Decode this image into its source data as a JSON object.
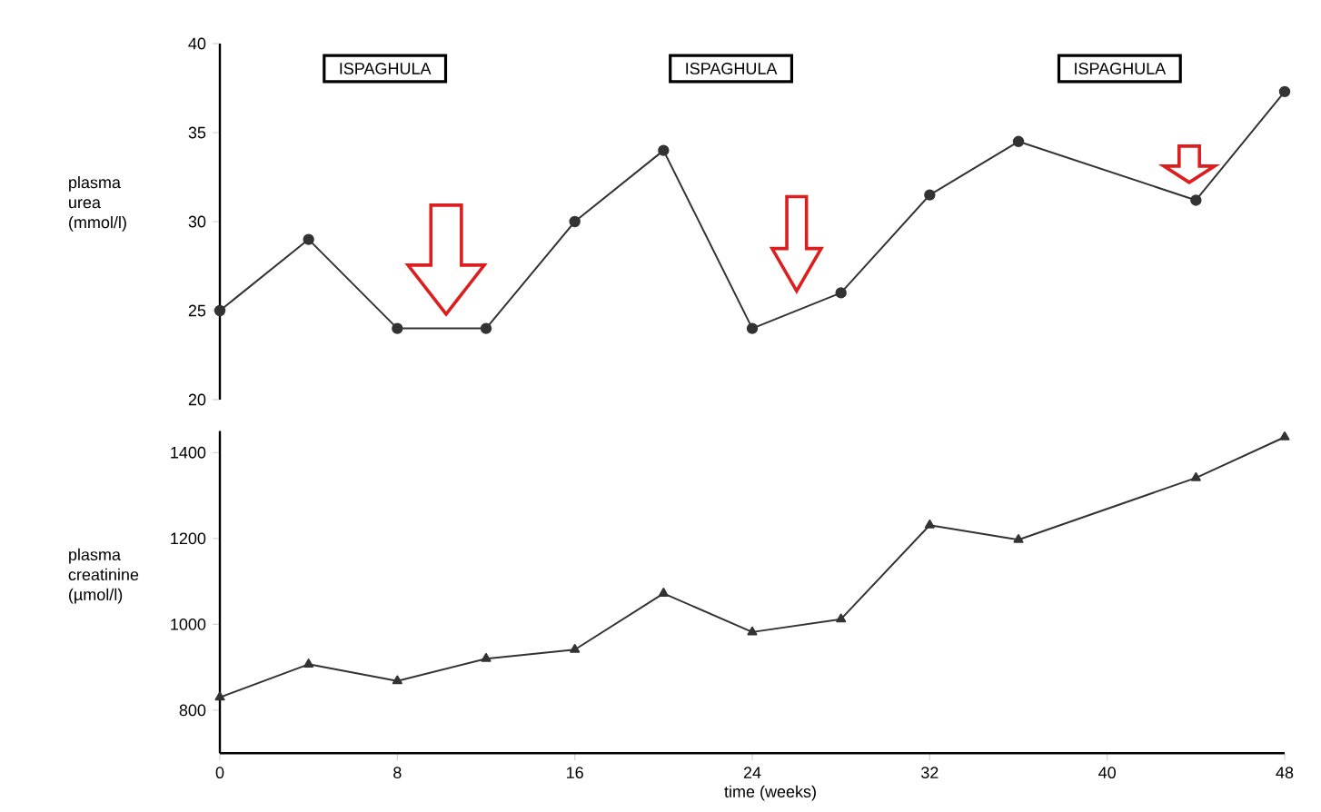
{
  "chart_data": [
    {
      "type": "line",
      "ylabel": "plasma urea (mmol/l)",
      "x": [
        0,
        4,
        8,
        12,
        16,
        20,
        24,
        28,
        32,
        36,
        44,
        48
      ],
      "series": [
        {
          "color": "#333333",
          "values": [
            25,
            29,
            24,
            24,
            30,
            34,
            24,
            26,
            31.5,
            34.5,
            31.2,
            37.3
          ]
        }
      ],
      "xlim": [
        0,
        48
      ],
      "ylim": [
        20,
        40
      ],
      "xticks": [
        0,
        8,
        16,
        24,
        32,
        40,
        48
      ],
      "yticks": [
        20,
        25,
        30,
        35,
        40
      ],
      "marker": "circle",
      "tick_labels": "y",
      "annotations": [
        "ISPAGHULA",
        "ISPAGHULA",
        "ISPAGHULA"
      ]
    },
    {
      "type": "line",
      "ylabel": "plasma creatinine (µmol/l)",
      "xlabel": "time (weeks)",
      "x": [
        0,
        4,
        8,
        12,
        16,
        20,
        24,
        28,
        32,
        36,
        44,
        48
      ],
      "series": [
        {
          "color": "#333333",
          "values": [
            830,
            907,
            868,
            920,
            941,
            1072,
            982,
            1012,
            1231,
            1197,
            1341,
            1436
          ]
        }
      ],
      "xlim": [
        0,
        48
      ],
      "ylim": [
        700,
        1450
      ],
      "xticks": [
        0,
        8,
        16,
        24,
        32,
        40,
        48
      ],
      "yticks": [
        800,
        1000,
        1200,
        1400
      ],
      "marker": "triangle"
    }
  ]
}
